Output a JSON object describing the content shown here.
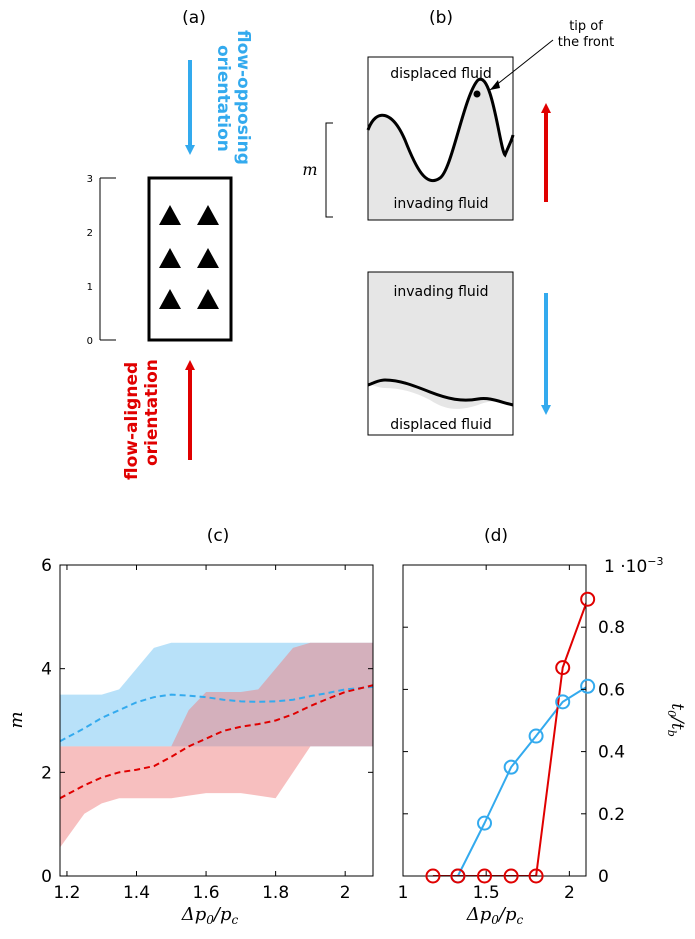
{
  "panels": {
    "a": {
      "label": "(a)",
      "top_text_line1": "flow-opposing",
      "top_text_line2": "orientation",
      "bottom_text_line1": "flow-aligned",
      "bottom_text_line2": "orientation",
      "ruler_ticks": [
        "0",
        "1",
        "2",
        "3"
      ],
      "colors": {
        "opposing": "#33aaee",
        "aligned": "#e00000"
      }
    },
    "b": {
      "label": "(b)",
      "tip_line1": "tip of",
      "tip_line2": "the front",
      "top_box_upper": "displaced fluid",
      "top_box_lower": "invading fluid",
      "m_label": "m",
      "bottom_box_upper": "invading fluid",
      "bottom_box_lower": "displaced fluid"
    },
    "c": {
      "label": "(c)"
    },
    "d": {
      "label": "(d)"
    }
  },
  "chart_data": [
    {
      "type": "area",
      "panel": "(c)",
      "xlabel": "Δp0/pc",
      "ylabel": "m",
      "xlim": [
        1.18,
        2.08
      ],
      "ylim": [
        0,
        6
      ],
      "xticks": [
        "1.2",
        "1.4",
        "1.6",
        "1.8",
        "2"
      ],
      "xtick_values": [
        1.2,
        1.4,
        1.6,
        1.8,
        2.0
      ],
      "yticks": [
        "0",
        "2",
        "4",
        "6"
      ],
      "ytick_values": [
        0,
        2,
        4,
        6
      ],
      "grid": false,
      "series": [
        {
          "color": "#33aaee",
          "band_x": [
            1.18,
            1.25,
            1.3,
            1.35,
            1.4,
            1.45,
            1.5,
            1.55,
            1.6,
            1.65,
            1.7,
            1.75,
            1.8,
            1.85,
            1.9,
            1.95,
            2.0,
            2.08
          ],
          "band_upper": [
            3.5,
            3.5,
            3.5,
            3.6,
            4.0,
            4.4,
            4.5,
            4.5,
            4.5,
            4.5,
            4.5,
            4.5,
            4.5,
            4.5,
            4.5,
            4.5,
            4.5,
            4.5
          ],
          "band_lower": [
            2.5,
            2.5,
            2.5,
            2.5,
            2.5,
            2.5,
            2.5,
            2.5,
            2.5,
            2.5,
            2.5,
            2.5,
            2.5,
            2.5,
            2.5,
            2.5,
            2.5,
            2.5
          ],
          "mean_x": [
            1.18,
            1.25,
            1.3,
            1.35,
            1.4,
            1.45,
            1.5,
            1.55,
            1.6,
            1.65,
            1.7,
            1.75,
            1.8,
            1.85,
            1.9,
            1.95,
            2.0,
            2.08
          ],
          "mean_y": [
            2.6,
            2.85,
            3.05,
            3.2,
            3.35,
            3.45,
            3.5,
            3.48,
            3.45,
            3.4,
            3.37,
            3.36,
            3.37,
            3.4,
            3.47,
            3.53,
            3.6,
            3.65
          ]
        },
        {
          "color": "#f08080",
          "band_x": [
            1.18,
            1.25,
            1.3,
            1.35,
            1.4,
            1.45,
            1.5,
            1.55,
            1.6,
            1.65,
            1.7,
            1.75,
            1.8,
            1.85,
            1.9,
            1.95,
            2.0,
            2.08
          ],
          "band_upper": [
            2.5,
            2.5,
            2.5,
            2.5,
            2.5,
            2.5,
            2.5,
            3.2,
            3.55,
            3.55,
            3.55,
            3.6,
            4.0,
            4.4,
            4.5,
            4.5,
            4.5,
            4.5
          ],
          "band_lower": [
            0.55,
            1.2,
            1.4,
            1.5,
            1.5,
            1.5,
            1.5,
            1.55,
            1.6,
            1.6,
            1.6,
            1.55,
            1.5,
            2.0,
            2.5,
            2.5,
            2.5,
            2.5
          ],
          "mean_x": [
            1.18,
            1.25,
            1.3,
            1.35,
            1.4,
            1.45,
            1.5,
            1.55,
            1.6,
            1.65,
            1.7,
            1.75,
            1.8,
            1.85,
            1.9,
            1.95,
            2.0,
            2.08
          ],
          "mean_y": [
            1.5,
            1.75,
            1.9,
            2.0,
            2.05,
            2.12,
            2.3,
            2.5,
            2.65,
            2.8,
            2.88,
            2.93,
            3.0,
            3.12,
            3.28,
            3.42,
            3.55,
            3.68
          ]
        }
      ]
    },
    {
      "type": "line",
      "panel": "(d)",
      "xlabel": "Δp0/pc",
      "ylabel": "t0/tb",
      "y_scale_note": "1 ·10−3",
      "xlim": [
        1.0,
        2.1
      ],
      "ylim": [
        0,
        1.0
      ],
      "xticks": [
        "1",
        "1.5",
        "2"
      ],
      "xtick_values": [
        1.0,
        1.5,
        2.0
      ],
      "yticks": [
        "0",
        "0.2",
        "0.4",
        "0.6",
        "0.8",
        "1"
      ],
      "ytick_values": [
        0,
        0.2,
        0.4,
        0.6,
        0.8,
        1.0
      ],
      "grid": false,
      "series": [
        {
          "color": "#33aaee",
          "x": [
            1.33,
            1.49,
            1.65,
            1.8,
            1.96,
            2.11
          ],
          "y": [
            0.0,
            0.17,
            0.35,
            0.45,
            0.56,
            0.61
          ]
        },
        {
          "color": "#e00000",
          "x": [
            1.18,
            1.33,
            1.49,
            1.65,
            1.8,
            1.96,
            2.11
          ],
          "y": [
            0.0,
            0.0,
            0.0,
            0.0,
            0.0,
            0.67,
            0.89
          ]
        }
      ]
    }
  ]
}
